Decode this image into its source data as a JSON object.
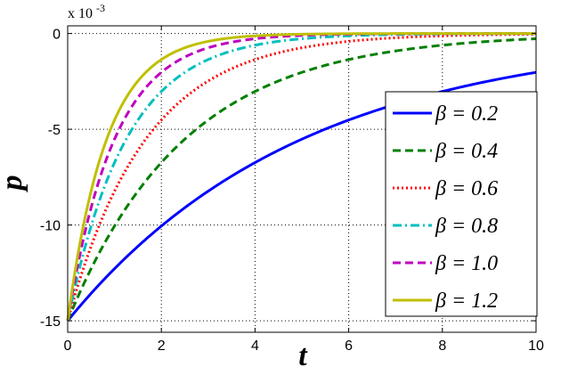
{
  "chart_data": {
    "type": "line",
    "xlabel": "t",
    "ylabel": "p",
    "y_multiplier_label": "x 10",
    "y_multiplier_exponent": "-3",
    "xlim": [
      0,
      10
    ],
    "ylim": [
      -15.6,
      0.4
    ],
    "x_ticks": [
      0,
      2,
      4,
      6,
      8,
      10
    ],
    "y_ticks": [
      0,
      -5,
      -10,
      -15
    ],
    "grid": true,
    "legend_position": "right",
    "p0": -15,
    "series": [
      {
        "name": "β = 0.2",
        "label": "β = 0.2",
        "beta": 0.2,
        "color": "#0000ff",
        "dash": "solid",
        "x": [
          0,
          1,
          2,
          3,
          4,
          5,
          6,
          7,
          8,
          9,
          10
        ],
        "y": [
          -15.0,
          -12.3,
          -10.1,
          -8.2,
          -6.7,
          -5.5,
          -4.5,
          -3.7,
          -3.0,
          -2.5,
          -2.0
        ]
      },
      {
        "name": "β = 0.4",
        "label": "β = 0.4",
        "beta": 0.4,
        "color": "#007f00",
        "dash": "dashed",
        "x": [
          0,
          1,
          2,
          3,
          4,
          5,
          6,
          7,
          8,
          9,
          10
        ],
        "y": [
          -15.0,
          -10.1,
          -6.7,
          -4.5,
          -3.0,
          -2.0,
          -1.4,
          -0.9,
          -0.6,
          -0.4,
          -0.3
        ]
      },
      {
        "name": "β = 0.6",
        "label": "β = 0.6",
        "beta": 0.6,
        "color": "#ff0000",
        "dash": "dotted",
        "x": [
          0,
          1,
          2,
          3,
          4,
          5,
          6,
          7,
          8,
          9,
          10
        ],
        "y": [
          -15.0,
          -8.2,
          -4.5,
          -2.5,
          -1.4,
          -0.7,
          -0.4,
          -0.2,
          -0.1,
          -0.1,
          0.0
        ]
      },
      {
        "name": "β = 0.8",
        "label": "β = 0.8",
        "beta": 0.8,
        "color": "#00bfbf",
        "dash": "dashdot",
        "x": [
          0,
          1,
          2,
          3,
          4,
          5,
          6,
          7,
          8,
          9,
          10
        ],
        "y": [
          -15.0,
          -6.7,
          -3.0,
          -1.4,
          -0.6,
          -0.3,
          -0.1,
          -0.1,
          0.0,
          0.0,
          0.0
        ]
      },
      {
        "name": "β = 1.0",
        "label": "β = 1.0",
        "beta": 1.0,
        "color": "#bf00bf",
        "dash": "dashed",
        "x": [
          0,
          1,
          2,
          3,
          4,
          5,
          6,
          7,
          8,
          9,
          10
        ],
        "y": [
          -15.0,
          -5.5,
          -2.0,
          -0.7,
          -0.3,
          -0.1,
          0.0,
          0.0,
          0.0,
          0.0,
          0.0
        ]
      },
      {
        "name": "β = 1.2",
        "label": "β = 1.2",
        "beta": 1.2,
        "color": "#bfbf00",
        "dash": "solid",
        "x": [
          0,
          1,
          2,
          3,
          4,
          5,
          6,
          7,
          8,
          9,
          10
        ],
        "y": [
          -15.0,
          -4.5,
          -1.4,
          -0.4,
          -0.1,
          0.0,
          0.0,
          0.0,
          0.0,
          0.0,
          0.0
        ]
      }
    ]
  }
}
